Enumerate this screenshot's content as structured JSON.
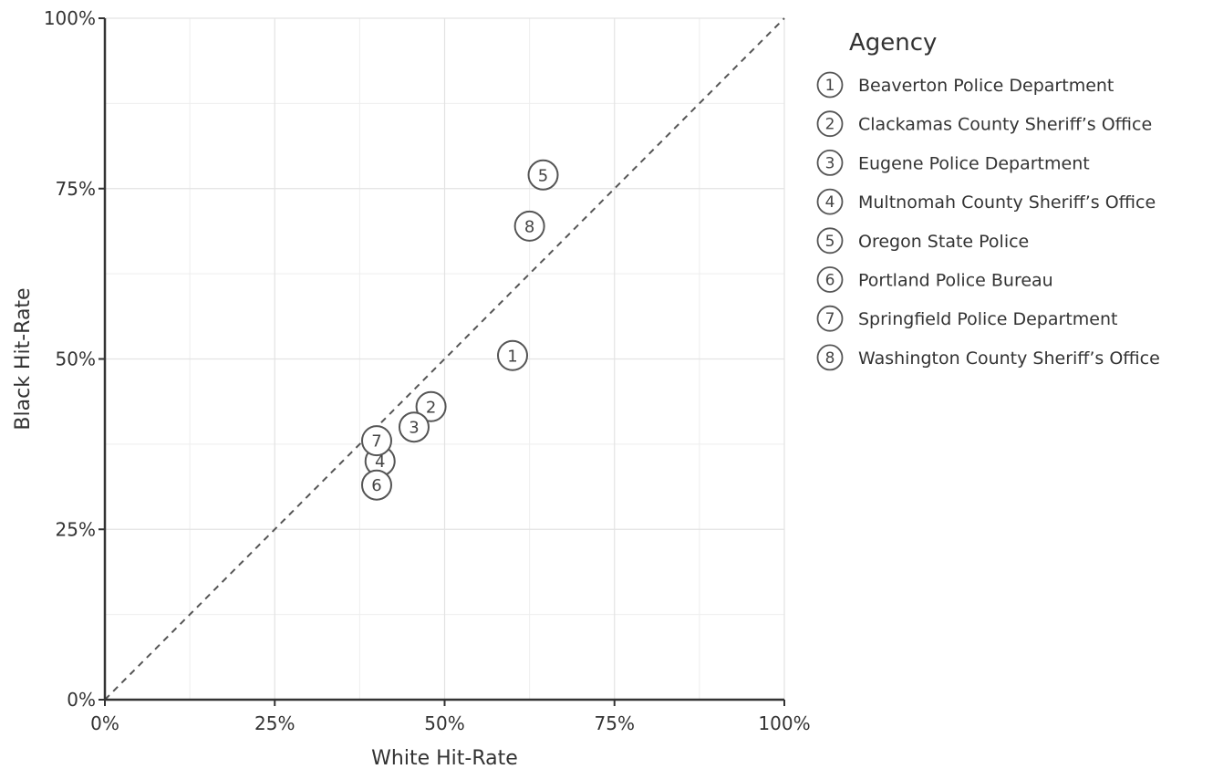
{
  "chart_data": {
    "type": "scatter",
    "title": "",
    "xlabel": "White Hit-Rate",
    "ylabel": "Black Hit-Rate",
    "xlim": [
      0,
      1
    ],
    "ylim": [
      0,
      1
    ],
    "x_ticks": [
      0,
      0.25,
      0.5,
      0.75,
      1
    ],
    "x_tick_labels": [
      "0%",
      "25%",
      "50%",
      "75%",
      "100%"
    ],
    "y_ticks": [
      0,
      0.25,
      0.5,
      0.75,
      1
    ],
    "y_tick_labels": [
      "0%",
      "25%",
      "50%",
      "75%",
      "100%"
    ],
    "grid": true,
    "reference_line": "y = x (dashed)",
    "legend": {
      "title": "Agency",
      "placement": "right"
    },
    "points": [
      {
        "key": "1",
        "agency": "Beaverton Police Department",
        "x": 0.6,
        "y": 0.505
      },
      {
        "key": "2",
        "agency": "Clackamas County Sheriff’s Office",
        "x": 0.48,
        "y": 0.43
      },
      {
        "key": "3",
        "agency": "Eugene Police Department",
        "x": 0.455,
        "y": 0.4
      },
      {
        "key": "4",
        "agency": "Multnomah County Sheriff’s Office",
        "x": 0.405,
        "y": 0.35
      },
      {
        "key": "5",
        "agency": "Oregon State Police",
        "x": 0.645,
        "y": 0.77
      },
      {
        "key": "6",
        "agency": "Portland Police Bureau",
        "x": 0.4,
        "y": 0.315
      },
      {
        "key": "7",
        "agency": "Springfield Police Department",
        "x": 0.4,
        "y": 0.38
      },
      {
        "key": "8",
        "agency": "Washington County Sheriff’s Office",
        "x": 0.625,
        "y": 0.695
      }
    ]
  }
}
